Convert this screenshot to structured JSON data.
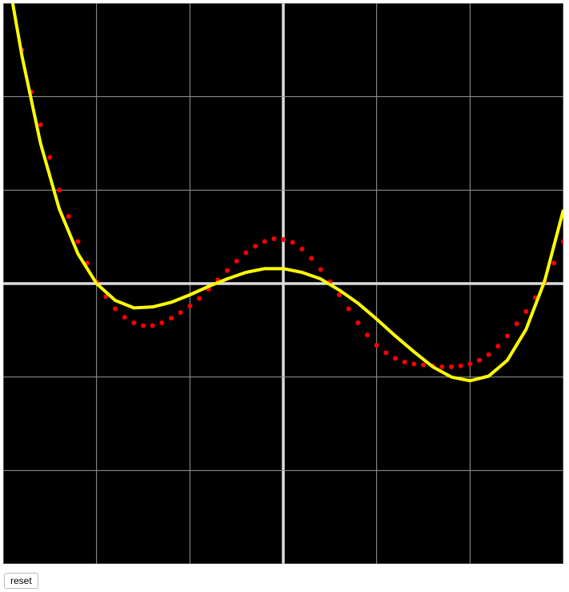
{
  "chart_data": {
    "type": "scatter",
    "xlim": [
      -3,
      3
    ],
    "ylim": [
      -3,
      3
    ],
    "xticks": [
      -3,
      -2,
      -1,
      0,
      1,
      2,
      3
    ],
    "yticks": [
      -3,
      -2,
      -1,
      0,
      1,
      2,
      3
    ],
    "grid": true,
    "series": [
      {
        "type": "scatter",
        "color": "#ff0000",
        "x": [
          -2.8,
          -2.7,
          -2.6,
          -2.5,
          -2.4,
          -2.3,
          -2.2,
          -2.1,
          -2.0,
          -1.9,
          -1.8,
          -1.7,
          -1.6,
          -1.5,
          -1.4,
          -1.3,
          -1.2,
          -1.1,
          -1.0,
          -0.9,
          -0.8,
          -0.7,
          -0.6,
          -0.5,
          -0.4,
          -0.3,
          -0.2,
          -0.1,
          0.0,
          0.1,
          0.2,
          0.3,
          0.4,
          0.5,
          0.6,
          0.7,
          0.8,
          0.9,
          1.0,
          1.1,
          1.2,
          1.3,
          1.4,
          1.5,
          1.6,
          1.7,
          1.8,
          1.9,
          2.0,
          2.1,
          2.2,
          2.3,
          2.4,
          2.5,
          2.6,
          2.7,
          2.8,
          2.9,
          3.0
        ],
        "values": [
          2.5,
          2.05,
          1.7,
          1.35,
          1.0,
          0.72,
          0.45,
          0.22,
          0.02,
          -0.14,
          -0.27,
          -0.36,
          -0.42,
          -0.45,
          -0.45,
          -0.42,
          -0.37,
          -0.31,
          -0.24,
          -0.16,
          -0.06,
          0.04,
          0.14,
          0.24,
          0.33,
          0.4,
          0.45,
          0.48,
          0.47,
          0.44,
          0.37,
          0.27,
          0.15,
          0.02,
          -0.12,
          -0.27,
          -0.42,
          -0.55,
          -0.66,
          -0.74,
          -0.8,
          -0.84,
          -0.86,
          -0.87,
          -0.88,
          -0.89,
          -0.89,
          -0.88,
          -0.86,
          -0.82,
          -0.76,
          -0.67,
          -0.56,
          -0.43,
          -0.3,
          -0.15,
          0.02,
          0.22,
          0.45
        ]
      },
      {
        "type": "line",
        "color": "#ffff00",
        "x": [
          -2.9,
          -2.8,
          -2.6,
          -2.4,
          -2.2,
          -2.0,
          -1.8,
          -1.6,
          -1.4,
          -1.2,
          -1.0,
          -0.8,
          -0.6,
          -0.4,
          -0.2,
          0.0,
          0.2,
          0.4,
          0.6,
          0.8,
          1.0,
          1.2,
          1.4,
          1.6,
          1.8,
          2.0,
          2.2,
          2.4,
          2.6,
          2.8,
          3.0
        ],
        "values": [
          3.01,
          2.44,
          1.5,
          0.8,
          0.32,
          0,
          -0.18,
          -0.26,
          -0.25,
          -0.2,
          -0.12,
          -0.03,
          0.05,
          0.12,
          0.16,
          0.16,
          0.12,
          0.05,
          -0.07,
          -0.21,
          -0.38,
          -0.56,
          -0.73,
          -0.89,
          -1.0,
          -1.04,
          -0.99,
          -0.82,
          -0.49,
          0.03,
          0.79
        ]
      }
    ]
  },
  "button": {
    "label": "reset"
  }
}
